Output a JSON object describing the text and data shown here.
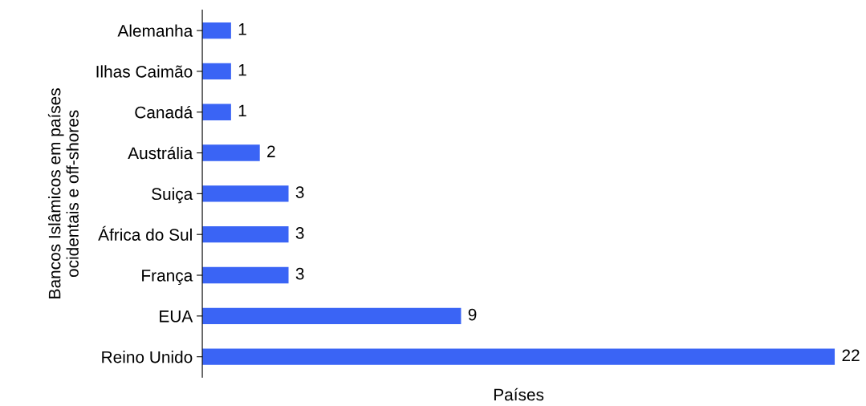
{
  "chart_data": {
    "type": "bar",
    "orientation": "horizontal",
    "categories": [
      "Alemanha",
      "Ilhas Caimão",
      "Canadá",
      "Austrália",
      "Suiça",
      "África do Sul",
      "França",
      "EUA",
      "Reino Unido"
    ],
    "values": [
      1,
      1,
      1,
      2,
      3,
      3,
      3,
      9,
      22
    ],
    "color": "#3a64f5",
    "data_labels": true,
    "xlabel": "Países",
    "ylabel": "Bancos Islâmicos em países\nocidentais e off-shores",
    "tick_labels": "y",
    "grid": false,
    "legend": false
  }
}
